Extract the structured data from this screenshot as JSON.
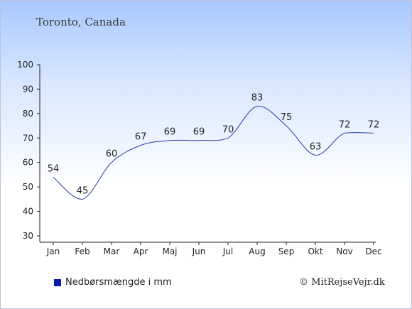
{
  "title": "Toronto, Canada",
  "legend": {
    "label": "Nedbørsmængde i mm",
    "color": "#0a1aa8"
  },
  "credit": "© MitRejseVejr.dk",
  "chart_data": {
    "type": "line",
    "title": "Toronto, Canada",
    "xlabel": "",
    "ylabel": "",
    "categories": [
      "Jan",
      "Feb",
      "Mar",
      "Apr",
      "Maj",
      "Jun",
      "Jul",
      "Aug",
      "Sep",
      "Okt",
      "Nov",
      "Dec"
    ],
    "series": [
      {
        "name": "Nedbørsmængde i mm",
        "values": [
          54,
          45,
          60,
          67,
          69,
          69,
          70,
          83,
          75,
          63,
          72,
          72
        ],
        "color": "#2a3aa8"
      }
    ],
    "yticks": [
      30,
      40,
      50,
      60,
      70,
      80,
      90,
      100
    ],
    "ylim": [
      30,
      100
    ],
    "grid": false,
    "legend_position": "bottom-left",
    "smooth": true
  }
}
